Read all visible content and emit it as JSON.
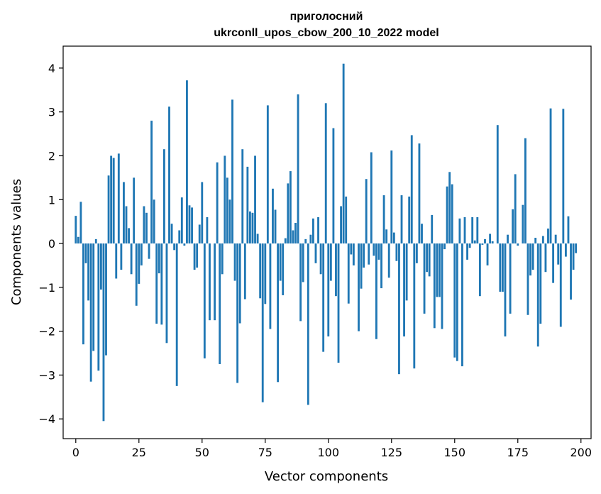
{
  "chart_data": {
    "type": "bar",
    "title_line1": "приголосний",
    "title_line2": "ukrconll_upos_cbow_200_10_2022 model",
    "xlabel": "Vector components",
    "ylabel": "Components values",
    "xlim": [
      -5,
      204
    ],
    "ylim": [
      -4.45,
      4.5
    ],
    "xticks": [
      0,
      25,
      50,
      75,
      100,
      125,
      150,
      175,
      200
    ],
    "yticks": [
      -4,
      -3,
      -2,
      -1,
      0,
      1,
      2,
      3,
      4
    ],
    "yticklabels": [
      "−4",
      "−3",
      "−2",
      "−1",
      "0",
      "1",
      "2",
      "3",
      "4"
    ],
    "grid": false,
    "bar_color": "#1f77b4",
    "values": [
      0.63,
      0.15,
      0.95,
      -2.3,
      -0.45,
      -1.3,
      -3.15,
      -2.45,
      0.1,
      -2.9,
      -1.05,
      -4.05,
      -2.55,
      1.55,
      2.0,
      1.95,
      -0.8,
      2.05,
      -0.6,
      1.4,
      0.85,
      0.35,
      -0.7,
      1.5,
      -1.42,
      -0.92,
      -0.5,
      0.85,
      0.7,
      -0.35,
      2.8,
      1.0,
      -1.83,
      -0.68,
      -1.85,
      2.15,
      -2.27,
      3.12,
      0.45,
      -0.15,
      -3.25,
      0.3,
      1.05,
      -0.05,
      3.72,
      0.87,
      0.82,
      -0.6,
      -0.55,
      0.43,
      1.4,
      -2.62,
      0.6,
      -1.75,
      0.0,
      -1.75,
      1.85,
      -2.75,
      -0.7,
      2.0,
      1.5,
      1.0,
      3.28,
      -0.85,
      -3.18,
      -1.82,
      2.15,
      -1.27,
      1.75,
      0.73,
      0.7,
      2.0,
      0.22,
      -1.25,
      -3.62,
      -1.38,
      3.15,
      -1.95,
      1.25,
      0.77,
      -3.16,
      -0.85,
      -1.18,
      0.12,
      1.37,
      1.65,
      0.3,
      0.47,
      3.4,
      -1.77,
      -0.88,
      0.1,
      -3.68,
      0.2,
      0.57,
      -0.45,
      0.6,
      -0.7,
      -2.47,
      3.2,
      -2.12,
      -0.85,
      2.63,
      -1.2,
      -2.72,
      0.85,
      4.1,
      1.07,
      -1.37,
      -0.25,
      -0.5,
      0.0,
      -2.0,
      -1.03,
      -0.55,
      1.47,
      -0.48,
      2.08,
      -0.28,
      -2.18,
      -0.37,
      -1.02,
      1.1,
      0.32,
      -0.78,
      2.12,
      0.25,
      -0.4,
      -2.98,
      1.1,
      -2.12,
      -1.3,
      1.07,
      2.47,
      -2.85,
      -0.45,
      2.28,
      0.45,
      -1.6,
      -0.65,
      -0.75,
      0.65,
      -1.93,
      -1.22,
      -1.22,
      -1.95,
      -0.13,
      1.3,
      1.63,
      1.35,
      -2.6,
      -2.68,
      0.57,
      -2.8,
      0.6,
      -0.37,
      -0.1,
      0.6,
      0.07,
      0.6,
      -1.2,
      -0.03,
      0.1,
      -0.5,
      0.22,
      0.05,
      0.0,
      2.7,
      -1.1,
      -1.1,
      -2.12,
      0.2,
      -1.6,
      0.78,
      1.58,
      -0.05,
      0.0,
      0.88,
      2.4,
      -1.63,
      -0.73,
      -0.6,
      0.13,
      -2.35,
      -1.83,
      0.17,
      -0.65,
      0.34,
      3.08,
      -0.9,
      0.2,
      -0.48,
      -1.9,
      3.07,
      -0.3,
      0.62,
      -1.28,
      -0.6,
      -0.22
    ]
  }
}
